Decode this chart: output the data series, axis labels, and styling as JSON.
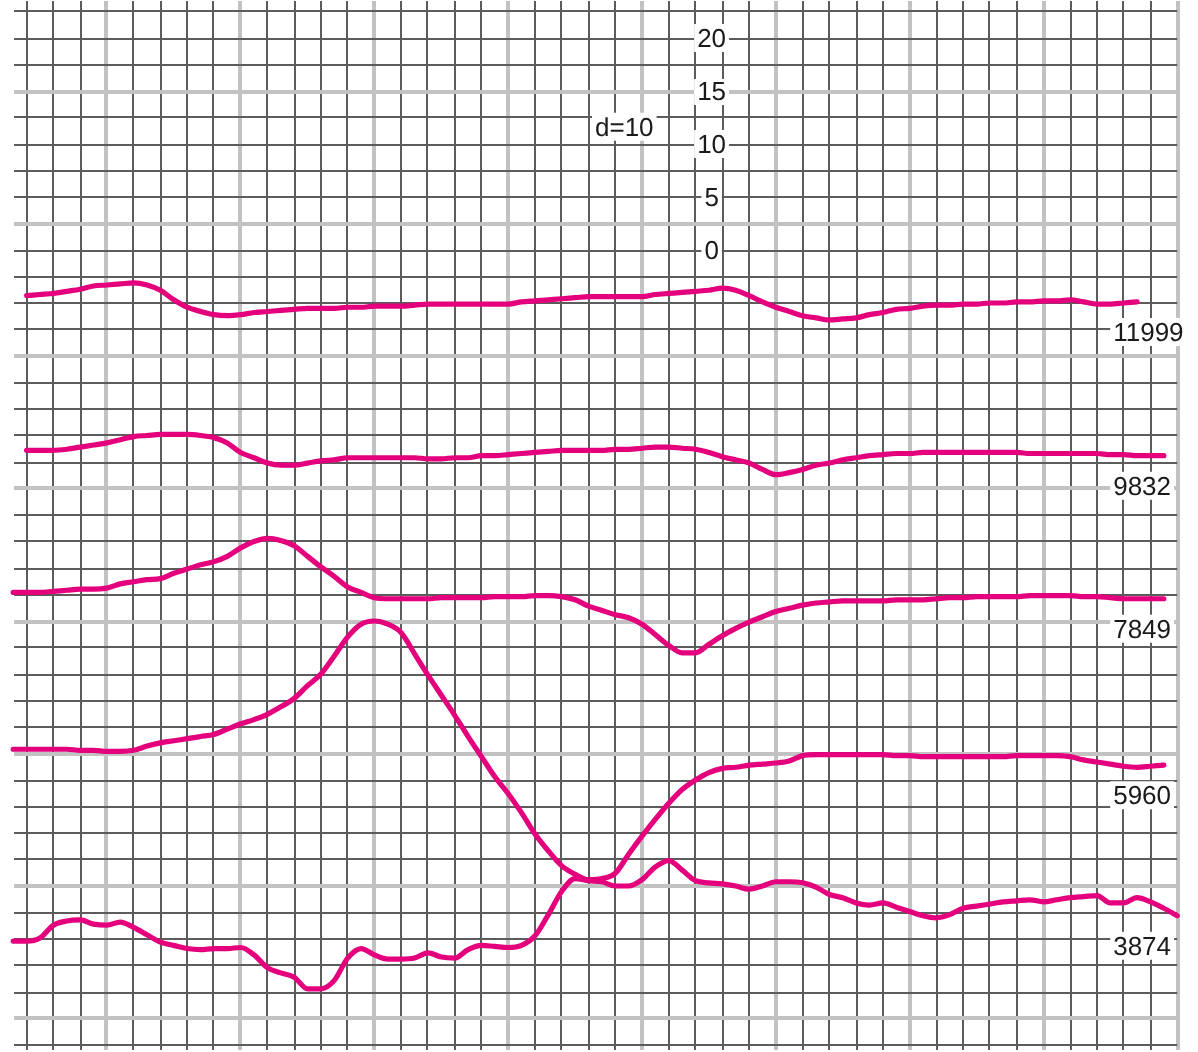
{
  "chart_data": {
    "type": "line",
    "annotations": [
      "d=10"
    ],
    "categories": [
      null,
      null,
      null,
      null,
      null,
      null,
      null,
      null,
      null,
      null,
      null,
      null,
      null,
      null,
      null,
      null,
      null,
      null,
      null,
      null,
      null,
      null,
      null,
      null,
      null,
      null,
      null,
      null,
      null,
      null,
      null,
      null,
      null,
      null,
      null,
      null,
      null,
      null,
      null,
      null,
      null,
      null,
      null,
      null,
      null,
      null,
      null,
      null,
      null,
      null,
      null,
      null,
      null,
      null,
      null,
      null,
      null,
      null,
      null,
      null,
      null,
      null,
      null,
      null,
      null,
      null,
      null,
      null,
      null,
      null,
      null,
      null,
      null,
      null,
      null,
      null,
      null,
      null,
      null,
      null,
      null,
      null,
      null,
      null,
      null,
      null,
      null,
      null
    ],
    "series": [
      {
        "name": "11999",
        "color": "#e4007c",
        "values": [
          null,
          -4.3,
          -4.2,
          -4.1,
          -3.9,
          -3.7,
          -3.4,
          -3.3,
          -3.2,
          -3.1,
          -3.3,
          -3.8,
          -4.7,
          -5.4,
          -5.8,
          -6.1,
          -6.2,
          -6.1,
          -5.9,
          -5.8,
          -5.7,
          -5.6,
          -5.5,
          -5.5,
          -5.5,
          -5.4,
          -5.4,
          -5.3,
          -5.3,
          -5.3,
          -5.2,
          -5.1,
          -5.1,
          -5.1,
          -5.1,
          -5.1,
          -5.1,
          -5.1,
          -4.9,
          -4.8,
          -4.7,
          -4.6,
          -4.5,
          -4.4,
          -4.4,
          -4.4,
          -4.4,
          -4.4,
          -4.2,
          -4.1,
          -4.0,
          -3.9,
          -3.8,
          -3.6,
          -3.8,
          -4.3,
          -4.9,
          -5.4,
          -5.8,
          -6.2,
          -6.4,
          -6.6,
          -6.5,
          -6.4,
          -6.1,
          -5.9,
          -5.6,
          -5.5,
          -5.3,
          -5.2,
          -5.2,
          -5.1,
          -5.1,
          -5.0,
          -5.0,
          -4.9,
          -4.9,
          -4.8,
          -4.8,
          -4.7,
          -4.9,
          -5.1,
          -5.1,
          -5.0,
          -4.9,
          null,
          null,
          null
        ]
      },
      {
        "name": "9832",
        "color": "#e4007c",
        "values": [
          null,
          -18.9,
          -18.9,
          -18.9,
          -18.8,
          -18.6,
          -18.4,
          -18.2,
          -17.9,
          -17.6,
          -17.5,
          -17.4,
          -17.4,
          -17.4,
          -17.5,
          -17.7,
          -18.2,
          -19.1,
          -19.6,
          -20.1,
          -20.3,
          -20.3,
          -20.1,
          -19.9,
          -19.8,
          -19.6,
          -19.6,
          -19.6,
          -19.6,
          -19.6,
          -19.6,
          -19.7,
          -19.7,
          -19.6,
          -19.6,
          -19.4,
          -19.4,
          -19.3,
          -19.2,
          -19.1,
          -19.0,
          -18.9,
          -18.9,
          -18.9,
          -18.9,
          -18.8,
          -18.8,
          -18.7,
          -18.6,
          -18.6,
          -18.7,
          -18.8,
          -19.1,
          -19.5,
          -19.8,
          -20.1,
          -20.7,
          -21.2,
          -21.0,
          -20.7,
          -20.3,
          -20.1,
          -19.8,
          -19.6,
          -19.4,
          -19.3,
          -19.2,
          -19.2,
          -19.1,
          -19.1,
          -19.1,
          -19.1,
          -19.1,
          -19.1,
          -19.1,
          -19.1,
          -19.2,
          -19.2,
          -19.2,
          -19.2,
          -19.2,
          -19.2,
          -19.3,
          -19.3,
          -19.4,
          -19.4,
          -19.4,
          null
        ]
      },
      {
        "name": "7849",
        "color": "#e4007c",
        "values": [
          -32.3,
          -32.3,
          -32.3,
          -32.2,
          -32.1,
          -32.0,
          -32.0,
          -31.9,
          -31.5,
          -31.3,
          -31.1,
          -31.0,
          -30.5,
          -30.1,
          -29.7,
          -29.4,
          -28.9,
          -28.1,
          -27.5,
          -27.2,
          -27.4,
          -27.9,
          -28.9,
          -29.9,
          -30.8,
          -31.8,
          -32.3,
          -32.8,
          -32.9,
          -32.9,
          -32.9,
          -32.9,
          -32.8,
          -32.8,
          -32.8,
          -32.8,
          -32.7,
          -32.7,
          -32.7,
          -32.6,
          -32.6,
          -32.7,
          -33.0,
          -33.6,
          -34.0,
          -34.4,
          -34.7,
          -35.3,
          -36.3,
          -37.3,
          -38.0,
          -38.0,
          -37.2,
          -36.4,
          -35.7,
          -35.1,
          -34.6,
          -34.1,
          -33.8,
          -33.5,
          -33.3,
          -33.2,
          -33.1,
          -33.1,
          -33.1,
          -33.1,
          -33.0,
          -33.0,
          -33.0,
          -32.9,
          -32.8,
          -32.8,
          -32.7,
          -32.7,
          -32.7,
          -32.7,
          -32.6,
          -32.6,
          -32.6,
          -32.6,
          -32.7,
          -32.7,
          -32.8,
          -32.9,
          -32.9,
          -32.9,
          -32.9,
          null
        ]
      },
      {
        "name": "5960",
        "color": "#e4007c",
        "values": [
          -47.1,
          -47.1,
          -47.1,
          -47.1,
          -47.1,
          -47.2,
          -47.2,
          -47.3,
          -47.3,
          -47.2,
          -46.8,
          -46.5,
          -46.3,
          -46.1,
          -45.9,
          -45.7,
          -45.2,
          -44.7,
          -44.3,
          -43.8,
          -43.1,
          -42.3,
          -41.1,
          -40.0,
          -38.3,
          -36.5,
          -35.3,
          -35.0,
          -35.3,
          -36.1,
          -38.1,
          -40.1,
          -42.0,
          -43.9,
          -45.9,
          -47.8,
          -49.7,
          -51.3,
          -53.1,
          -55.1,
          -56.7,
          -58.1,
          -58.9,
          -59.4,
          -59.3,
          -58.8,
          -57.0,
          -55.3,
          -53.7,
          -52.2,
          -50.9,
          -50.0,
          -49.3,
          -48.9,
          -48.8,
          -48.6,
          -48.5,
          -48.4,
          -48.2,
          -47.7,
          -47.6,
          -47.6,
          -47.6,
          -47.6,
          -47.6,
          -47.6,
          -47.7,
          -47.7,
          -47.8,
          -47.8,
          -47.8,
          -47.8,
          -47.8,
          -47.8,
          -47.8,
          -47.7,
          -47.7,
          -47.7,
          -47.7,
          -47.8,
          -48.1,
          -48.3,
          -48.5,
          -48.7,
          -48.8,
          -48.7,
          -48.6,
          null
        ]
      },
      {
        "name": "3874",
        "color": "#e4007c",
        "values": [
          -65.2,
          -65.2,
          -64.9,
          -63.7,
          -63.3,
          -63.2,
          -63.6,
          -63.7,
          -63.4,
          -63.9,
          -64.6,
          -65.3,
          -65.6,
          -65.9,
          -66.0,
          -65.9,
          -65.9,
          -65.8,
          -66.5,
          -67.7,
          -68.2,
          -68.6,
          -69.7,
          -69.7,
          -68.9,
          -66.8,
          -65.9,
          -66.5,
          -66.9,
          -66.9,
          -66.8,
          -66.3,
          -66.7,
          -66.8,
          -66.0,
          -65.6,
          -65.7,
          -65.8,
          -65.6,
          -64.7,
          -62.7,
          -60.5,
          -59.3,
          -59.5,
          -59.6,
          -60.0,
          -60.0,
          -59.4,
          -58.2,
          -57.6,
          -58.5,
          -59.5,
          -59.7,
          -59.8,
          -60.0,
          -60.3,
          -60.0,
          -59.6,
          -59.6,
          -59.7,
          -60.1,
          -60.8,
          -61.1,
          -61.6,
          -61.8,
          -61.6,
          -62.0,
          -62.4,
          -62.8,
          -63.0,
          -62.7,
          -62.1,
          -61.9,
          -61.7,
          -61.5,
          -61.4,
          -61.3,
          -61.5,
          -61.3,
          -61.1,
          -61.0,
          -60.9,
          -61.6,
          -61.6,
          -61.1,
          -61.5,
          -62.1,
          -62.8
        ]
      }
    ],
    "ylim": [
      -75.5,
      23.5
    ],
    "yticks": [
      {
        "value": -75,
        "label": null
      },
      {
        "value": -72.5,
        "label": null
      },
      {
        "value": -70,
        "label": null
      },
      {
        "value": -67.5,
        "label": null
      },
      {
        "value": -65,
        "label": null
      },
      {
        "value": -62.5,
        "label": null
      },
      {
        "value": -60,
        "label": null
      },
      {
        "value": -57.5,
        "label": null
      },
      {
        "value": -55,
        "label": null
      },
      {
        "value": -52.5,
        "label": null
      },
      {
        "value": -50,
        "label": null
      },
      {
        "value": -47.5,
        "label": null
      },
      {
        "value": -45,
        "label": null
      },
      {
        "value": -42.5,
        "label": null
      },
      {
        "value": -40,
        "label": null
      },
      {
        "value": -37.5,
        "label": null
      },
      {
        "value": -35,
        "label": null
      },
      {
        "value": -32.5,
        "label": null
      },
      {
        "value": -30,
        "label": null
      },
      {
        "value": -27.5,
        "label": null
      },
      {
        "value": -25,
        "label": null
      },
      {
        "value": -22.5,
        "label": null
      },
      {
        "value": -20,
        "label": null
      },
      {
        "value": -17.5,
        "label": null
      },
      {
        "value": -15,
        "label": null
      },
      {
        "value": -12.5,
        "label": null
      },
      {
        "value": -10,
        "label": null
      },
      {
        "value": -7.5,
        "label": null
      },
      {
        "value": -5,
        "label": null
      },
      {
        "value": -2.5,
        "label": null
      },
      0,
      {
        "value": 2.5,
        "label": null
      },
      5,
      {
        "value": 7.5,
        "label": null
      },
      10,
      {
        "value": 12.5,
        "label": null
      },
      15,
      {
        "value": 17.5,
        "label": null
      },
      20,
      {
        "value": 22.5,
        "label": null
      }
    ],
    "grid": true,
    "tick_labels": "y",
    "marker": "none",
    "line_style": "solid"
  }
}
